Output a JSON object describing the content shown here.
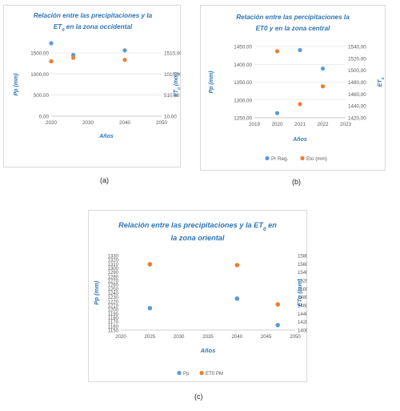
{
  "colors": {
    "blue": "#5b9bd5",
    "orange": "#ed7d31",
    "title": "#2e75b6",
    "axis_text": "#595959",
    "grid": "#d9d9d9"
  },
  "captions": [
    "(a)",
    "(b)",
    "(c)"
  ],
  "chart_data": [
    {
      "type": "scatter",
      "title_line1": "Relación entre las precipitaciones y la",
      "title_line2_main": "ET",
      "title_line2_sub": "0",
      "title_line2_rest": " en la zona occidental",
      "xlabel": "Años",
      "ylabel": "Pp (mm)",
      "y2label_main": "ET",
      "y2label_sub": "0",
      "y2label_rest": " (mm)",
      "xlim": [
        2020,
        2050
      ],
      "xticks": [
        "2020",
        "2030",
        "2040",
        "2050"
      ],
      "ylim": [
        0,
        1500
      ],
      "yticks": [
        "0,00",
        "500,00",
        "1000,00",
        "1500,00"
      ],
      "y2lim": [
        10,
        1510
      ],
      "y2ticks": [
        "10,00",
        "510,00",
        "1010,00",
        "1510,00"
      ],
      "legend": "none",
      "grid": true,
      "series": [
        {
          "axis": "left",
          "color": "#5b9bd5",
          "points": [
            [
              2020,
              1730
            ],
            [
              2026,
              1450
            ],
            [
              2040,
              1560
            ]
          ]
        },
        {
          "axis": "right",
          "color": "#ed7d31",
          "points": [
            [
              2020,
              1310
            ],
            [
              2026,
              1395
            ],
            [
              2040,
              1345
            ]
          ]
        }
      ]
    },
    {
      "type": "scatter",
      "title_line1": "Relación entre las percipitaciones  la",
      "title_line2_main": "ET0 y en la zona central",
      "title_line2_sub": "",
      "title_line2_rest": "",
      "xlabel": "Años",
      "ylabel": "Pp (mm)",
      "y2label_main": "ET",
      "y2label_sub": "0",
      "y2label_rest": "",
      "xlim": [
        2019,
        2023
      ],
      "xticks": [
        "2019",
        "2020",
        "2021",
        "2022",
        "2023"
      ],
      "ylim": [
        1250,
        1450
      ],
      "yticks": [
        "1250,00",
        "1300,00",
        "1350,00",
        "1400,00",
        "1450,00"
      ],
      "y2lim": [
        1420,
        1540
      ],
      "y2ticks": [
        "1420,00",
        "1440,00",
        "1460,00",
        "1480,00",
        "1500,00",
        "1520,00",
        "1540,00"
      ],
      "legend": "bottom",
      "grid": true,
      "series": [
        {
          "name": "Pr Reg.",
          "axis": "left",
          "color": "#5b9bd5",
          "points": [
            [
              2020,
              1263
            ],
            [
              2021,
              1440
            ],
            [
              2022,
              1388
            ]
          ]
        },
        {
          "name": "Eto (mm)",
          "axis": "right",
          "color": "#ed7d31",
          "points": [
            [
              2020,
              1532
            ],
            [
              2021,
              1443
            ],
            [
              2022,
              1473
            ]
          ]
        }
      ]
    },
    {
      "type": "scatter",
      "title_line1_main": "Relación entre las precipitaciones y la ET",
      "title_line1_sub": "0",
      "title_line1_rest": " en",
      "title_line2_main": "la zona oriental",
      "title_line2_sub": "",
      "title_line2_rest": "",
      "xlabel": "Años",
      "ylabel": "Pp (mm)",
      "y2label_main": "ETo (mm)",
      "y2label_sub": "",
      "y2label_rest": "",
      "xlim": [
        2020,
        2050
      ],
      "xticks": [
        "2020",
        "2025",
        "2030",
        "2035",
        "2040",
        "2045",
        "2050"
      ],
      "ylim": [
        1150,
        1330
      ],
      "yticks": [
        "1150",
        "1160",
        "1170",
        "1180",
        "1190",
        "1200",
        "1210",
        "1220",
        "1230",
        "1240",
        "1250",
        "1260",
        "1270",
        "1280",
        "1290",
        "1300",
        "1310",
        "1320",
        "1330"
      ],
      "y2lim": [
        1400,
        1580
      ],
      "y2ticks": [
        "1400",
        "1420",
        "1440",
        "1460",
        "1480",
        "1500",
        "1520",
        "1540",
        "1560",
        "1580"
      ],
      "legend": "bottom",
      "grid": false,
      "series": [
        {
          "name": "Pp",
          "axis": "left",
          "color": "#5b9bd5",
          "points": [
            [
              2025,
              1203
            ],
            [
              2040,
              1226
            ],
            [
              2047,
              1162
            ]
          ]
        },
        {
          "name": "ET0 PM",
          "axis": "right",
          "color": "#ed7d31",
          "points": [
            [
              2025,
              1559
            ],
            [
              2040,
              1557
            ],
            [
              2047,
              1462
            ]
          ]
        }
      ]
    }
  ]
}
